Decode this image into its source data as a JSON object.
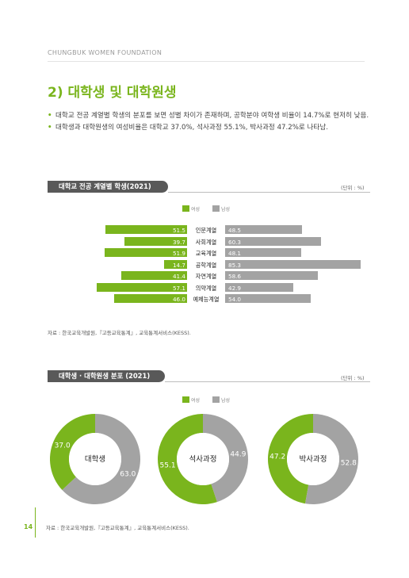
{
  "header": {
    "org": "CHUNGBUK WOMEN FOUNDATION"
  },
  "section": {
    "title": "2) 대학생 및 대학원생"
  },
  "bullets": [
    "대학교 전공 계열별 학생의 분포를 보면 성별 차이가 존재하며, 공학분야 여학생 비율이 14.7%로 현저히 낮음.",
    "대학생과 대학원생의 여성비율은 대학교 37.0%, 석사과정 55.1%, 박사과정 47.2%로 나타남."
  ],
  "colors": {
    "female": "#7ab51d",
    "male": "#a3a3a3"
  },
  "chart1": {
    "tab": "대학교 전공 계열별 학생(2021)",
    "unit": "(단위 : %)",
    "source": "자료 : 한국교육개발원,『고등교육통계』, 교육통계서비스(KESS).",
    "legend": {
      "female": "여성",
      "male": "남성"
    }
  },
  "chart2": {
    "tab": "대학생 · 대학원생 분포 (2021)",
    "unit": "(단위 : %)",
    "source": "자료 : 한국교육개발원,『고등교육통계』, 교육통계서비스(KESS).",
    "legend": {
      "female": "여성",
      "male": "남성"
    }
  },
  "chart_data": [
    {
      "type": "bar",
      "orientation": "horizontal-diverging",
      "categories": [
        "인문계열",
        "사회계열",
        "교육계열",
        "공학계열",
        "자연계열",
        "의약계열",
        "예체능계열"
      ],
      "series": [
        {
          "name": "여성",
          "values": [
            "51.5",
            "39.7",
            "51.9",
            "14.7",
            "41.4",
            "57.1",
            "46.0"
          ]
        },
        {
          "name": "남성",
          "values": [
            "48.5",
            "60.3",
            "48.1",
            "85.3",
            "58.6",
            "42.9",
            "54.0"
          ]
        }
      ],
      "title": "대학교 전공 계열별 학생(2021)"
    },
    {
      "type": "pie",
      "donuts": [
        {
          "label": "대학생",
          "values": [
            "37.0",
            "63.0"
          ]
        },
        {
          "label": "석사과정",
          "values": [
            "55.1",
            "44.9"
          ]
        },
        {
          "label": "박사과정",
          "values": [
            "47.2",
            "52.8"
          ]
        }
      ],
      "series_names": [
        "여성",
        "남성"
      ],
      "title": "대학생 · 대학원생 분포 (2021)"
    }
  ],
  "page": {
    "number": "14"
  }
}
